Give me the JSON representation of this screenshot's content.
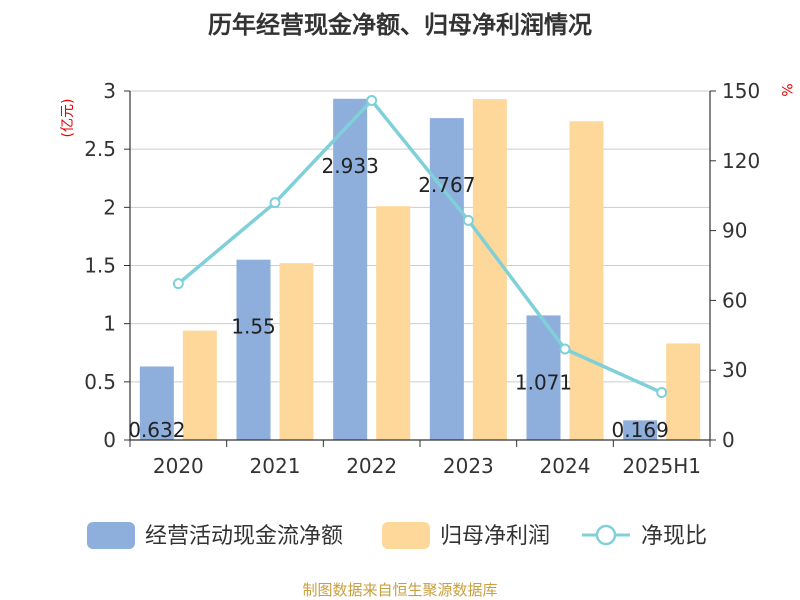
{
  "chart_data": {
    "type": "bar",
    "title": "历年经营现金净额、归母净利润情况",
    "categories": [
      "2020",
      "2021",
      "2022",
      "2023",
      "2024",
      "2025H1"
    ],
    "left_axis": {
      "unit": "(亿元)",
      "ylim": [
        0,
        3
      ],
      "ticks": [
        "0",
        "0.5",
        "1",
        "1.5",
        "2",
        "2.5",
        "3"
      ]
    },
    "right_axis": {
      "unit": "%",
      "ylim": [
        0,
        150
      ],
      "ticks": [
        "0",
        "30",
        "60",
        "90",
        "120",
        "150"
      ]
    },
    "series": [
      {
        "name": "经营活动现金流净额",
        "kind": "bar",
        "axis": "left",
        "color": "#8eaedb",
        "values": [
          0.632,
          1.55,
          2.933,
          2.767,
          1.071,
          0.169
        ],
        "labels": [
          "0.632",
          "1.55",
          "2.933",
          "2.767",
          "1.071",
          "0.169"
        ]
      },
      {
        "name": "归母净利润",
        "kind": "bar",
        "axis": "left",
        "color": "#fdd89a",
        "values": [
          0.94,
          1.52,
          2.01,
          2.93,
          2.74,
          0.83
        ]
      },
      {
        "name": "净现比",
        "kind": "line",
        "axis": "right",
        "color": "#7fd0d8",
        "values": [
          67.2,
          102.0,
          145.9,
          94.4,
          39.1,
          20.4
        ]
      }
    ],
    "grid": true,
    "legend_position": "bottom"
  },
  "footer": {
    "source": "制图数据来自恒生聚源数据库"
  }
}
